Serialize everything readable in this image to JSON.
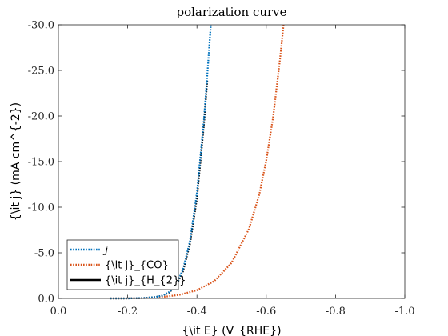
{
  "chart_data": {
    "type": "line",
    "title": "polarization curve",
    "xlabel": "{\\it E} (V_{RHE})",
    "ylabel": "{\\it j} (mA cm^{-2})",
    "xlim": [
      0.0,
      -1.0
    ],
    "ylim": [
      0.0,
      -30.0
    ],
    "x_ticks": [
      "0.0",
      "-0.2",
      "-0.4",
      "-0.6",
      "-0.8",
      "-1.0"
    ],
    "y_ticks": [
      "0.0",
      "-5.0",
      "-10.0",
      "-15.0",
      "-20.0",
      "-25.0",
      "-30.0"
    ],
    "legend_position": "bottom-left",
    "grid": false,
    "series": [
      {
        "name": "j",
        "label_italic": true,
        "color": "#0072BD",
        "style": "dotted",
        "x": [
          -0.15,
          -0.2,
          -0.25,
          -0.28,
          -0.3,
          -0.32,
          -0.34,
          -0.36,
          -0.38,
          -0.4,
          -0.42,
          -0.43,
          -0.44
        ],
        "y": [
          0.0,
          0.0,
          -0.05,
          -0.15,
          -0.3,
          -0.7,
          -1.5,
          -3.2,
          -6.3,
          -11.6,
          -19.5,
          -24.6,
          -30.0
        ]
      },
      {
        "name": "{\\it j}_{CO}",
        "color": "#D95319",
        "style": "dotted",
        "x": [
          -0.15,
          -0.2,
          -0.25,
          -0.3,
          -0.35,
          -0.4,
          -0.45,
          -0.5,
          -0.55,
          -0.58,
          -0.6,
          -0.62,
          -0.64,
          -0.65
        ],
        "y": [
          0.0,
          0.0,
          -0.05,
          -0.15,
          -0.4,
          -0.9,
          -1.9,
          -3.9,
          -7.6,
          -11.4,
          -15.1,
          -19.9,
          -26.3,
          -30.0
        ]
      },
      {
        "name": "{\\it j}_{H_{2}}",
        "color": "#000000",
        "style": "dotted",
        "x": [
          -0.15,
          -0.2,
          -0.25,
          -0.28,
          -0.3,
          -0.32,
          -0.34,
          -0.36,
          -0.38,
          -0.4,
          -0.42,
          -0.43
        ],
        "y": [
          0.0,
          0.0,
          -0.05,
          -0.15,
          -0.3,
          -0.65,
          -1.4,
          -3.0,
          -6.0,
          -11.0,
          -19.0,
          -24.0
        ]
      }
    ]
  }
}
